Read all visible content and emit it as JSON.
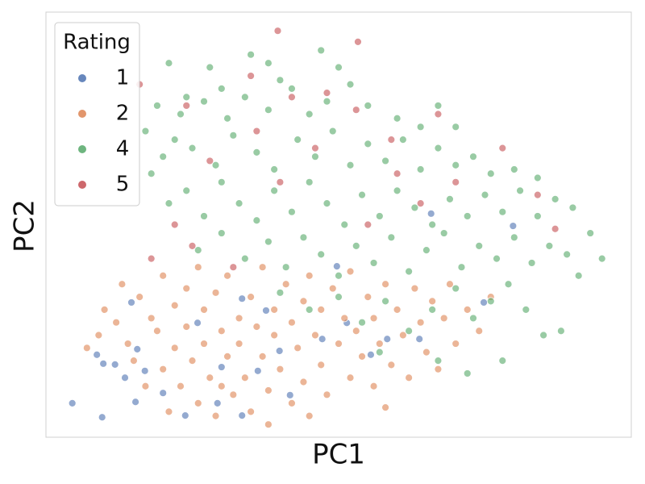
{
  "chart_data": {
    "type": "scatter",
    "x_label": "PC1",
    "y_label": "PC2",
    "xlim": [
      0,
      100
    ],
    "ylim": [
      0,
      100
    ],
    "legend": {
      "title": "Rating",
      "position": "upper left"
    },
    "series": [
      {
        "name": "1",
        "color": "#4c72b0",
        "data": [
          [
            4.5,
            8.0
          ],
          [
            9.6,
            4.7
          ],
          [
            8.7,
            19.4
          ],
          [
            9.8,
            17.3
          ],
          [
            11.8,
            17.1
          ],
          [
            13.5,
            14.0
          ],
          [
            15.3,
            8.3
          ],
          [
            15.6,
            20.7
          ],
          [
            16.9,
            15.6
          ],
          [
            20.0,
            10.4
          ],
          [
            23.8,
            5.1
          ],
          [
            25.9,
            26.9
          ],
          [
            30.0,
            16.5
          ],
          [
            33.5,
            32.6
          ],
          [
            36.2,
            15.6
          ],
          [
            37.6,
            29.8
          ],
          [
            39.9,
            20.3
          ],
          [
            41.7,
            9.9
          ],
          [
            47.2,
            23.1
          ],
          [
            49.7,
            40.2
          ],
          [
            51.4,
            26.9
          ],
          [
            55.5,
            19.4
          ],
          [
            58.3,
            23.1
          ],
          [
            63.8,
            23.1
          ],
          [
            65.8,
            52.6
          ],
          [
            74.8,
            31.7
          ],
          [
            79.8,
            49.7
          ],
          [
            14.6,
            31.7
          ],
          [
            29.3,
            8.0
          ],
          [
            33.5,
            5.1
          ]
        ]
      },
      {
        "name": "2",
        "color": "#dd8452",
        "data": [
          [
            7,
            21
          ],
          [
            9,
            24
          ],
          [
            10,
            30
          ],
          [
            12,
            27
          ],
          [
            13,
            36
          ],
          [
            14,
            22
          ],
          [
            15,
            18
          ],
          [
            16,
            33
          ],
          [
            17,
            12
          ],
          [
            18,
            28
          ],
          [
            19,
            25
          ],
          [
            20,
            38
          ],
          [
            20,
            16
          ],
          [
            21,
            6
          ],
          [
            22,
            31
          ],
          [
            22,
            21
          ],
          [
            23,
            12
          ],
          [
            24,
            35
          ],
          [
            24,
            26
          ],
          [
            25,
            18
          ],
          [
            26,
            8
          ],
          [
            26,
            40
          ],
          [
            27,
            30
          ],
          [
            27,
            22
          ],
          [
            28,
            14
          ],
          [
            29,
            34
          ],
          [
            29,
            5
          ],
          [
            30,
            25
          ],
          [
            31,
            19
          ],
          [
            31,
            38
          ],
          [
            32,
            10
          ],
          [
            33,
            28
          ],
          [
            33,
            22
          ],
          [
            34,
            14
          ],
          [
            35,
            33
          ],
          [
            35,
            6
          ],
          [
            36,
            26
          ],
          [
            37,
            19
          ],
          [
            37,
            40
          ],
          [
            38,
            11
          ],
          [
            39,
            30
          ],
          [
            39,
            24
          ],
          [
            40,
            16
          ],
          [
            41,
            36
          ],
          [
            42,
            8
          ],
          [
            42,
            27
          ],
          [
            43,
            21
          ],
          [
            44,
            32
          ],
          [
            44,
            13
          ],
          [
            45,
            38
          ],
          [
            46,
            24
          ],
          [
            47,
            17
          ],
          [
            47,
            30
          ],
          [
            48,
            10
          ],
          [
            49,
            35
          ],
          [
            50,
            22
          ],
          [
            51,
            28
          ],
          [
            52,
            14
          ],
          [
            52,
            39
          ],
          [
            53,
            25
          ],
          [
            54,
            19
          ],
          [
            55,
            33
          ],
          [
            56,
            12
          ],
          [
            56,
            28
          ],
          [
            57,
            22
          ],
          [
            58,
            36
          ],
          [
            59,
            17
          ],
          [
            60,
            30
          ],
          [
            61,
            24
          ],
          [
            62,
            14
          ],
          [
            63,
            35
          ],
          [
            64,
            27
          ],
          [
            65,
            20
          ],
          [
            66,
            32
          ],
          [
            67,
            16
          ],
          [
            68,
            28
          ],
          [
            69,
            36
          ],
          [
            70,
            22
          ],
          [
            72,
            30
          ],
          [
            74,
            25
          ],
          [
            76,
            33
          ],
          [
            58,
            7
          ],
          [
            45,
            5
          ],
          [
            38,
            3
          ],
          [
            30,
            12
          ]
        ]
      },
      {
        "name": "4",
        "color": "#55a868",
        "data": [
          [
            21,
            88
          ],
          [
            28,
            87
          ],
          [
            35,
            90
          ],
          [
            38,
            88
          ],
          [
            40,
            84
          ],
          [
            47,
            91
          ],
          [
            50,
            87
          ],
          [
            30,
            82
          ],
          [
            24,
            80
          ],
          [
            19,
            78
          ],
          [
            23,
            76
          ],
          [
            27,
            79
          ],
          [
            31,
            75
          ],
          [
            34,
            80
          ],
          [
            38,
            77
          ],
          [
            42,
            82
          ],
          [
            45,
            76
          ],
          [
            48,
            79
          ],
          [
            52,
            83
          ],
          [
            55,
            78
          ],
          [
            60,
            75
          ],
          [
            64,
            73
          ],
          [
            67,
            78
          ],
          [
            70,
            73
          ],
          [
            17,
            72
          ],
          [
            22,
            70
          ],
          [
            20,
            66
          ],
          [
            25,
            68
          ],
          [
            29,
            64
          ],
          [
            32,
            71
          ],
          [
            36,
            67
          ],
          [
            39,
            63
          ],
          [
            43,
            70
          ],
          [
            46,
            66
          ],
          [
            49,
            72
          ],
          [
            52,
            64
          ],
          [
            55,
            69
          ],
          [
            58,
            65
          ],
          [
            61,
            70
          ],
          [
            64,
            63
          ],
          [
            67,
            68
          ],
          [
            70,
            64
          ],
          [
            73,
            66
          ],
          [
            76,
            62
          ],
          [
            80,
            63
          ],
          [
            84,
            61
          ],
          [
            18,
            62
          ],
          [
            21,
            55
          ],
          [
            24,
            58
          ],
          [
            27,
            52
          ],
          [
            30,
            60
          ],
          [
            33,
            55
          ],
          [
            36,
            51
          ],
          [
            39,
            58
          ],
          [
            42,
            53
          ],
          [
            45,
            60
          ],
          [
            48,
            55
          ],
          [
            51,
            50
          ],
          [
            54,
            57
          ],
          [
            57,
            52
          ],
          [
            60,
            58
          ],
          [
            63,
            54
          ],
          [
            66,
            50
          ],
          [
            69,
            56
          ],
          [
            72,
            52
          ],
          [
            75,
            57
          ],
          [
            78,
            53
          ],
          [
            81,
            58
          ],
          [
            84,
            52
          ],
          [
            87,
            56
          ],
          [
            90,
            54
          ],
          [
            93,
            48
          ],
          [
            95,
            42
          ],
          [
            26,
            44
          ],
          [
            30,
            48
          ],
          [
            34,
            42
          ],
          [
            38,
            46
          ],
          [
            41,
            40
          ],
          [
            44,
            47
          ],
          [
            47,
            43
          ],
          [
            50,
            38
          ],
          [
            53,
            45
          ],
          [
            56,
            41
          ],
          [
            59,
            47
          ],
          [
            62,
            39
          ],
          [
            65,
            44
          ],
          [
            68,
            48
          ],
          [
            71,
            40
          ],
          [
            74,
            45
          ],
          [
            77,
            42
          ],
          [
            80,
            47
          ],
          [
            83,
            41
          ],
          [
            86,
            45
          ],
          [
            89,
            43
          ],
          [
            91,
            38
          ],
          [
            40,
            34
          ],
          [
            45,
            30
          ],
          [
            50,
            33
          ],
          [
            54,
            27
          ],
          [
            58,
            32
          ],
          [
            62,
            25
          ],
          [
            66,
            30
          ],
          [
            70,
            35
          ],
          [
            73,
            28
          ],
          [
            76,
            32
          ],
          [
            79,
            36
          ],
          [
            82,
            30
          ],
          [
            85,
            24
          ],
          [
            72,
            15
          ],
          [
            67,
            18
          ],
          [
            78,
            18
          ],
          [
            88,
            25
          ],
          [
            57,
            20
          ]
        ]
      },
      {
        "name": "5",
        "color": "#c44e52",
        "data": [
          [
            39.6,
            95.6
          ],
          [
            53.3,
            93
          ],
          [
            16,
            83
          ],
          [
            24,
            78
          ],
          [
            35,
            85
          ],
          [
            42,
            80
          ],
          [
            48,
            81
          ],
          [
            53,
            77
          ],
          [
            59,
            70
          ],
          [
            67,
            76
          ],
          [
            78,
            68
          ],
          [
            84,
            57
          ],
          [
            36,
            72
          ],
          [
            28,
            65
          ],
          [
            40,
            60
          ],
          [
            60,
            62
          ],
          [
            70,
            60
          ],
          [
            87,
            49
          ],
          [
            22,
            50
          ],
          [
            32,
            40
          ],
          [
            25,
            45
          ],
          [
            46,
            68
          ],
          [
            55,
            50
          ],
          [
            64,
            55
          ],
          [
            18,
            42
          ]
        ]
      }
    ]
  }
}
